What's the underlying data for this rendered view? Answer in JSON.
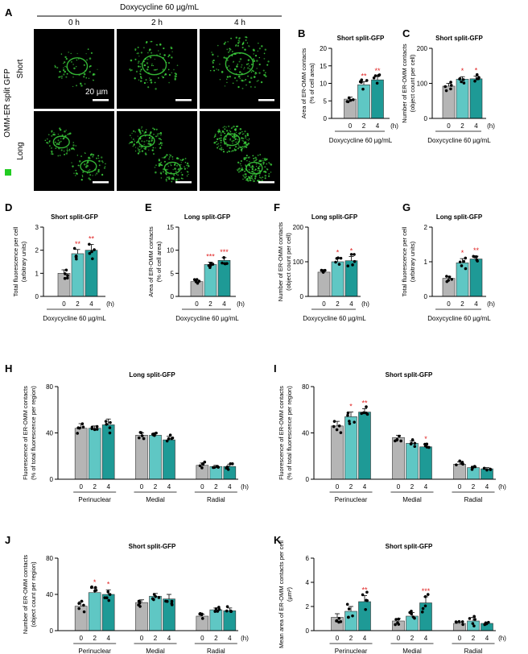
{
  "panel_a": {
    "letter": "A",
    "header": "Doxycycline 60 µg/mL",
    "timepoints": [
      "0 h",
      "2 h",
      "4 h"
    ],
    "rows": [
      "Short",
      "Long"
    ],
    "side_label": "OMM-ER split GFP",
    "scale_bar_label": "20 µm",
    "colors": {
      "signal": "#39c83a",
      "legend_square": "#22cc22"
    }
  },
  "colors": {
    "bar_0h": "#b5b5b5",
    "bar_2h": "#5fc7c4",
    "bar_4h": "#1e9a96",
    "significance": "#e02020"
  },
  "chart_data": [
    {
      "id": "B",
      "type": "bar",
      "title": "Short split-GFP",
      "categories": [
        "0",
        "2",
        "4"
      ],
      "unit_label": "(h)",
      "xlabel": "Doxycycline 60 µg/mL",
      "ylabel": "Area of ER-OMM contacts (% of cell area)",
      "ylim": [
        0,
        20
      ],
      "yticks": [
        0,
        5,
        10,
        15,
        20
      ],
      "values": [
        5.5,
        9.6,
        11.0
      ],
      "errors": [
        0.6,
        0.9,
        1.0
      ],
      "significance": [
        "",
        "**",
        "**"
      ]
    },
    {
      "id": "C",
      "type": "bar",
      "title": "Short split-GFP",
      "categories": [
        "0",
        "2",
        "4"
      ],
      "unit_label": "(h)",
      "xlabel": "Doxycycline 60 µg/mL",
      "ylabel": "Number of ER-OMM contacts (object count per cell)",
      "ylim": [
        0,
        200
      ],
      "yticks": [
        0,
        100,
        200
      ],
      "values": [
        92,
        112,
        113
      ],
      "errors": [
        8,
        7,
        8
      ],
      "significance": [
        "",
        "*",
        "*"
      ]
    },
    {
      "id": "D",
      "type": "bar",
      "title": "Short split-GFP",
      "categories": [
        "0",
        "2",
        "4"
      ],
      "unit_label": "(h)",
      "xlabel": "Doxycycline 60 µg/mL",
      "ylabel": "Total fluorescence per cell (arbitrary units)",
      "ylim": [
        0,
        3
      ],
      "yticks": [
        0,
        1,
        2,
        3
      ],
      "values": [
        1.0,
        1.85,
        2.0
      ],
      "errors": [
        0.15,
        0.18,
        0.25
      ],
      "significance": [
        "",
        "**",
        "**"
      ]
    },
    {
      "id": "E",
      "type": "bar",
      "title": "Long split-GFP",
      "categories": [
        "0",
        "2",
        "4"
      ],
      "unit_label": "(h)",
      "xlabel": "Doxycycline 60 µg/mL",
      "ylabel": "Area of ER-OMM contacts (% of cell area)",
      "ylim": [
        0,
        15
      ],
      "yticks": [
        0,
        5,
        10,
        15
      ],
      "values": [
        3.2,
        6.9,
        7.8
      ],
      "errors": [
        0.3,
        0.5,
        0.6
      ],
      "significance": [
        "",
        "***",
        "***"
      ]
    },
    {
      "id": "F",
      "type": "bar",
      "title": "Long split-GFP",
      "categories": [
        "0",
        "2",
        "4"
      ],
      "unit_label": "(h)",
      "xlabel": "Doxycycline 60 µg/mL",
      "ylabel": "Number of ER-OMM contacts (object count per cell)",
      "ylim": [
        0,
        200
      ],
      "yticks": [
        0,
        100,
        200
      ],
      "values": [
        70,
        100,
        103
      ],
      "errors": [
        4,
        10,
        12
      ],
      "significance": [
        "",
        "*",
        "*"
      ]
    },
    {
      "id": "G",
      "type": "bar",
      "title": "Long split-GFP",
      "categories": [
        "0",
        "2",
        "4"
      ],
      "unit_label": "(h)",
      "xlabel": "Doxycycline 60 µg/mL",
      "ylabel": "Total fluorescence per cell (arbitrary units)",
      "ylim": [
        0,
        2
      ],
      "yticks": [
        0,
        1,
        2
      ],
      "values": [
        0.52,
        0.97,
        1.08
      ],
      "errors": [
        0.06,
        0.12,
        0.08
      ],
      "significance": [
        "",
        "*",
        "**"
      ]
    },
    {
      "id": "H",
      "type": "bar",
      "title": "Long split-GFP",
      "categories": [
        "0",
        "2",
        "4"
      ],
      "unit_label": "(h)",
      "groups": [
        "Perinuclear",
        "Medial",
        "Radial"
      ],
      "ylabel": "Fluorescence of ER-OMM contacts (% of total fluorescence per region)",
      "ylim": [
        0,
        80
      ],
      "yticks": [
        0,
        40,
        80
      ],
      "values": [
        [
          44,
          44,
          47
        ],
        [
          38,
          38,
          34
        ],
        [
          12,
          11,
          11
        ]
      ],
      "errors": [
        [
          4,
          2,
          5
        ],
        [
          2,
          2,
          3
        ],
        [
          2,
          1,
          2
        ]
      ],
      "significance": [
        [
          "",
          "",
          ""
        ],
        [
          "",
          "",
          ""
        ],
        [
          "",
          "",
          ""
        ]
      ]
    },
    {
      "id": "I",
      "type": "bar",
      "title": "Short split-GFP",
      "categories": [
        "0",
        "2",
        "4"
      ],
      "unit_label": "(h)",
      "groups": [
        "Perinuclear",
        "Medial",
        "Radial"
      ],
      "ylabel": "Fluorescence of ER-OMM contacts (% of total fluorescence per region)",
      "ylim": [
        0,
        80
      ],
      "yticks": [
        0,
        40,
        80
      ],
      "values": [
        [
          46,
          54,
          58
        ],
        [
          36,
          31,
          28
        ],
        [
          13,
          10,
          9
        ]
      ],
      "errors": [
        [
          4,
          4,
          3
        ],
        [
          2,
          2,
          2
        ],
        [
          2,
          1,
          1
        ]
      ],
      "significance": [
        [
          "",
          "*",
          "**"
        ],
        [
          "",
          "",
          "*"
        ],
        [
          "",
          "",
          ""
        ]
      ]
    },
    {
      "id": "J",
      "type": "bar",
      "title": "Short split-GFP",
      "categories": [
        "0",
        "2",
        "4"
      ],
      "unit_label": "(h)",
      "groups": [
        "Perinuclear",
        "Medial",
        "Radial"
      ],
      "ylabel": "Number of ER-OMM contacts (object count per region)",
      "ylim": [
        0,
        80
      ],
      "yticks": [
        0,
        40,
        80
      ],
      "values": [
        [
          27,
          42,
          40
        ],
        [
          31,
          38,
          35
        ],
        [
          16,
          23,
          22
        ]
      ],
      "errors": [
        [
          5,
          5,
          5
        ],
        [
          3,
          3,
          5
        ],
        [
          2,
          2,
          3
        ]
      ],
      "significance": [
        [
          "",
          "*",
          "*"
        ],
        [
          "",
          "",
          ""
        ],
        [
          "",
          "",
          ""
        ]
      ]
    },
    {
      "id": "K",
      "type": "bar",
      "title": "Short split-GFP",
      "categories": [
        "0",
        "2",
        "4"
      ],
      "unit_label": "(h)",
      "groups": [
        "Perinuclear",
        "Medial",
        "Radial"
      ],
      "ylabel": "Mean area of ER-OMM contacts per cell (µm²)",
      "ylim": [
        0,
        6
      ],
      "yticks": [
        0,
        2,
        4,
        6
      ],
      "values": [
        [
          1.1,
          1.6,
          2.4
        ],
        [
          0.8,
          1.2,
          2.3
        ],
        [
          0.6,
          0.8,
          0.6
        ]
      ],
      "errors": [
        [
          0.3,
          0.4,
          0.5
        ],
        [
          0.2,
          0.3,
          0.5
        ],
        [
          0.1,
          0.3,
          0.1
        ]
      ],
      "significance": [
        [
          "",
          "",
          "**"
        ],
        [
          "",
          "",
          "***"
        ],
        [
          "",
          "",
          ""
        ]
      ]
    }
  ]
}
